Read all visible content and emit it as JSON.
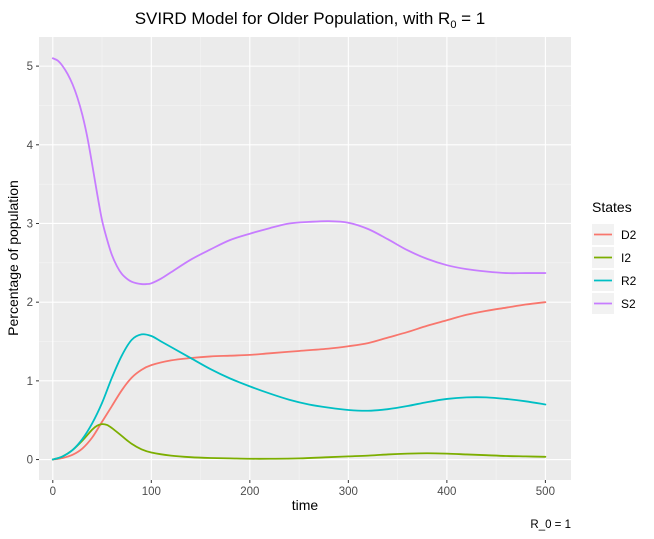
{
  "chart_data": {
    "type": "line",
    "title": {
      "prefix": "SVIRD Model for Older Population, with R",
      "subscript": "0",
      "suffix": " = 1"
    },
    "xlabel": "time",
    "ylabel": "Percentage of population",
    "caption": "R_0 = 1",
    "xlim": [
      -14,
      526
    ],
    "ylim": [
      -0.26,
      5.37
    ],
    "x_ticks": [
      0,
      100,
      200,
      300,
      400,
      500
    ],
    "y_ticks": [
      0,
      1,
      2,
      3,
      4,
      5
    ],
    "x_tick_labels": [
      "0",
      "100",
      "200",
      "300",
      "400",
      "500"
    ],
    "y_tick_labels": [
      "0",
      "1",
      "2",
      "3",
      "4",
      "5"
    ],
    "grid": true,
    "legend": {
      "title": "States",
      "position": "right"
    },
    "series": [
      {
        "name": "D2",
        "color": "#F8766D",
        "x": [
          0,
          10,
          20,
          30,
          40,
          50,
          60,
          70,
          80,
          90,
          100,
          120,
          140,
          160,
          180,
          200,
          220,
          250,
          280,
          300,
          320,
          340,
          360,
          380,
          400,
          420,
          440,
          460,
          480,
          500
        ],
        "y": [
          0,
          0.02,
          0.06,
          0.14,
          0.28,
          0.48,
          0.68,
          0.88,
          1.04,
          1.14,
          1.2,
          1.26,
          1.29,
          1.31,
          1.32,
          1.33,
          1.35,
          1.38,
          1.41,
          1.44,
          1.48,
          1.55,
          1.62,
          1.7,
          1.77,
          1.84,
          1.89,
          1.93,
          1.97,
          2.0
        ]
      },
      {
        "name": "I2",
        "color": "#7CAE00",
        "x": [
          0,
          10,
          20,
          30,
          40,
          45,
          50,
          55,
          60,
          70,
          80,
          90,
          100,
          120,
          140,
          160,
          180,
          200,
          220,
          250,
          280,
          300,
          320,
          340,
          360,
          380,
          400,
          420,
          440,
          460,
          480,
          500
        ],
        "y": [
          0,
          0.04,
          0.12,
          0.24,
          0.38,
          0.43,
          0.45,
          0.44,
          0.4,
          0.3,
          0.2,
          0.13,
          0.09,
          0.05,
          0.03,
          0.02,
          0.015,
          0.01,
          0.01,
          0.015,
          0.03,
          0.04,
          0.05,
          0.065,
          0.075,
          0.08,
          0.075,
          0.065,
          0.055,
          0.045,
          0.04,
          0.035
        ]
      },
      {
        "name": "R2",
        "color": "#00BFC4",
        "x": [
          0,
          10,
          20,
          30,
          40,
          50,
          60,
          70,
          80,
          90,
          100,
          110,
          120,
          140,
          160,
          180,
          200,
          220,
          240,
          260,
          280,
          300,
          320,
          340,
          360,
          380,
          400,
          420,
          440,
          460,
          480,
          500
        ],
        "y": [
          0,
          0.04,
          0.12,
          0.26,
          0.46,
          0.72,
          1.04,
          1.32,
          1.52,
          1.59,
          1.57,
          1.5,
          1.43,
          1.29,
          1.15,
          1.03,
          0.93,
          0.84,
          0.76,
          0.7,
          0.66,
          0.63,
          0.62,
          0.64,
          0.68,
          0.73,
          0.77,
          0.79,
          0.79,
          0.77,
          0.74,
          0.7
        ]
      },
      {
        "name": "S2",
        "color": "#C77CFF",
        "x": [
          0,
          5,
          10,
          15,
          20,
          25,
          30,
          35,
          40,
          45,
          50,
          55,
          60,
          65,
          70,
          75,
          80,
          85,
          90,
          95,
          100,
          110,
          120,
          140,
          160,
          180,
          200,
          220,
          240,
          260,
          280,
          300,
          320,
          340,
          360,
          380,
          400,
          420,
          440,
          460,
          480,
          500
        ],
        "y": [
          5.1,
          5.07,
          5.0,
          4.9,
          4.77,
          4.6,
          4.38,
          4.1,
          3.75,
          3.38,
          3.04,
          2.8,
          2.6,
          2.46,
          2.36,
          2.3,
          2.26,
          2.24,
          2.23,
          2.23,
          2.24,
          2.3,
          2.38,
          2.54,
          2.67,
          2.79,
          2.87,
          2.94,
          3.0,
          3.02,
          3.03,
          3.01,
          2.93,
          2.8,
          2.66,
          2.55,
          2.47,
          2.42,
          2.39,
          2.37,
          2.37,
          2.37
        ]
      }
    ]
  }
}
